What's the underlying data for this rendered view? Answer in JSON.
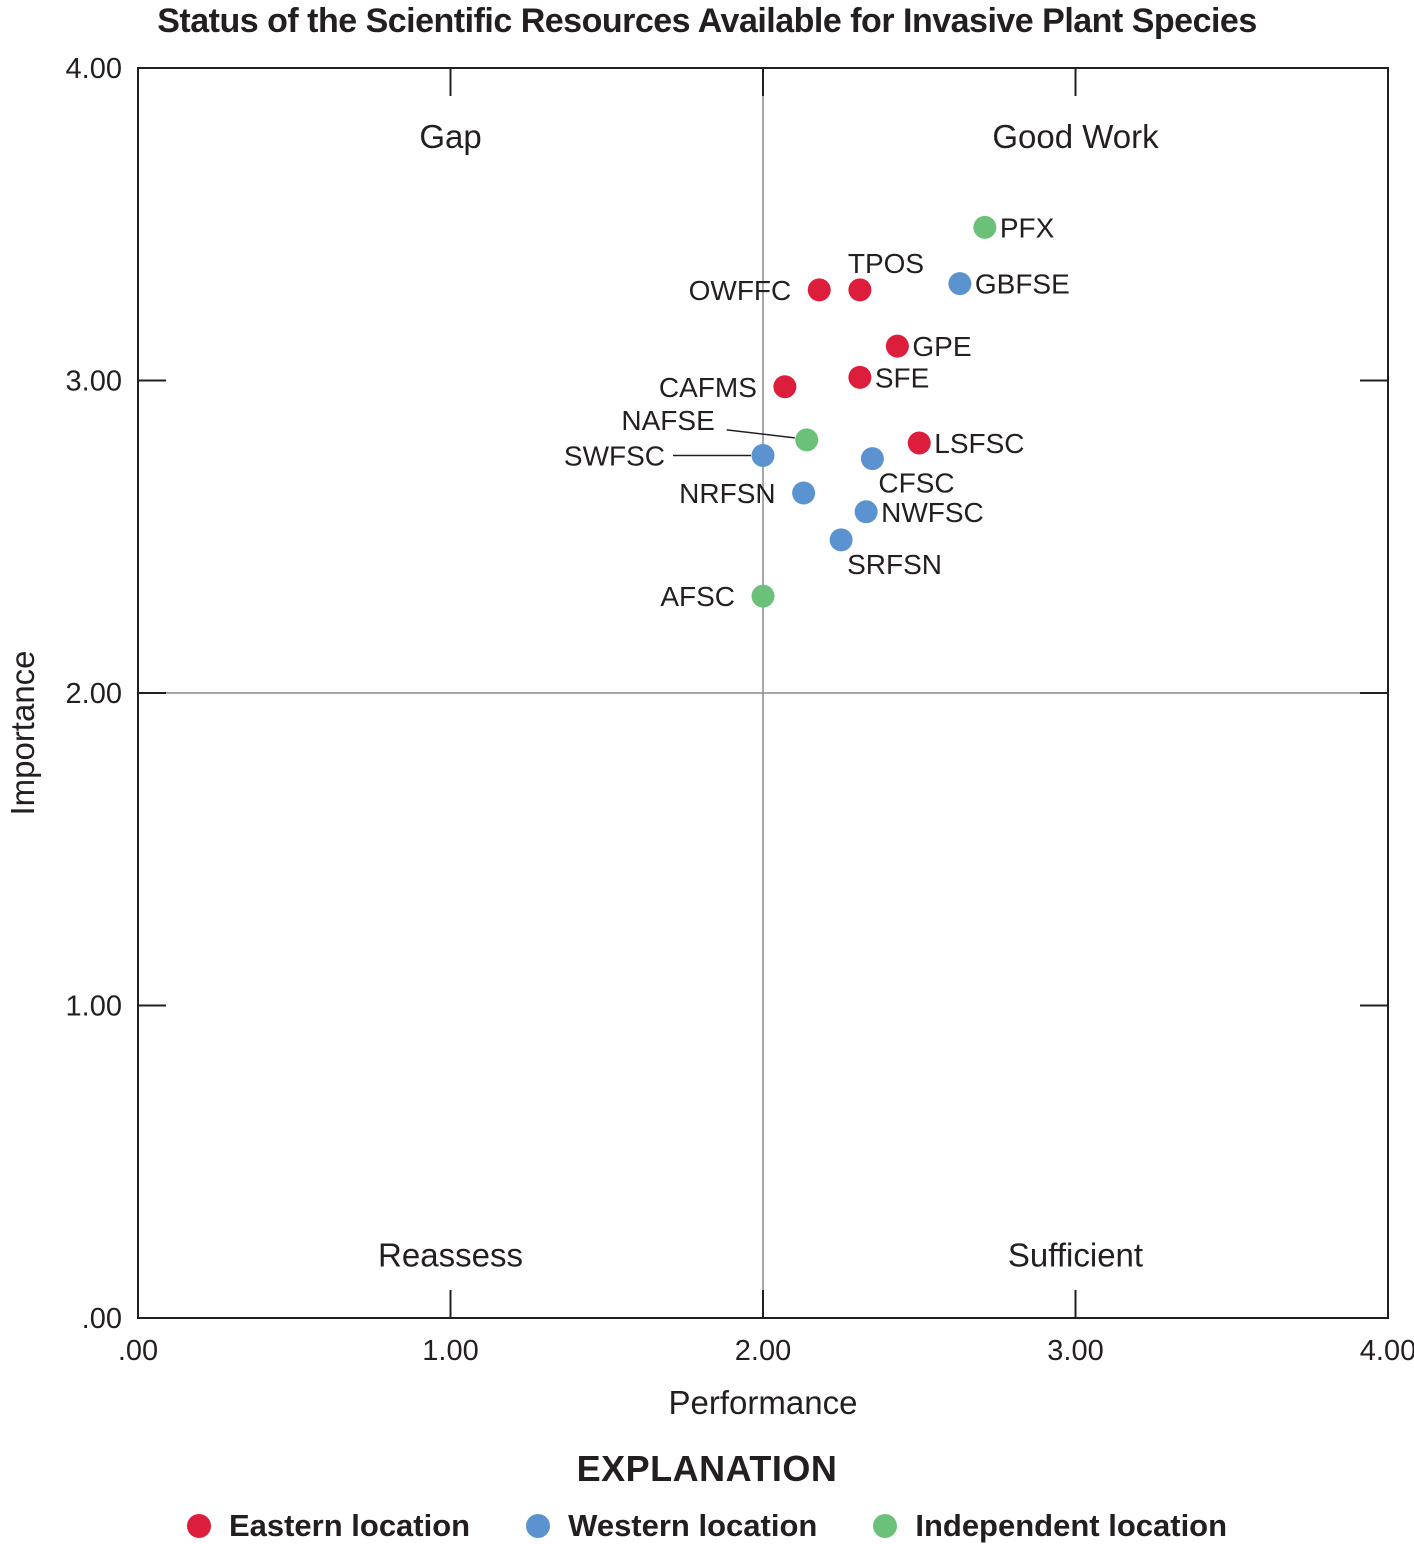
{
  "chart_data": {
    "type": "scatter",
    "title": "Status of the Scientific Resources Available for Invasive Plant Species",
    "xlabel": "Performance",
    "ylabel": "Importance",
    "xlim": [
      0,
      4
    ],
    "ylim": [
      0,
      4
    ],
    "xticks": [
      0,
      1,
      2,
      3,
      4
    ],
    "yticks": [
      0,
      1,
      2,
      3,
      4
    ],
    "xtick_labels": [
      ".00",
      "1.00",
      "2.00",
      "3.00",
      "4.00"
    ],
    "ytick_labels": [
      ".00",
      "1.00",
      "2.00",
      "3.00",
      "4.00"
    ],
    "divider": {
      "x": 2.0,
      "y": 2.0
    },
    "quadrants": [
      {
        "label": "Gap",
        "x": 1.0,
        "y": 3.78
      },
      {
        "label": "Good Work",
        "x": 3.0,
        "y": 3.78
      },
      {
        "label": "Reassess",
        "x": 1.0,
        "y": 0.2
      },
      {
        "label": "Sufficient",
        "x": 3.0,
        "y": 0.2
      }
    ],
    "categories": [
      {
        "key": "eastern",
        "name": "Eastern location",
        "color": "#dc1e3c"
      },
      {
        "key": "western",
        "name": "Western location",
        "color": "#5b93d1"
      },
      {
        "key": "independent",
        "name": "Independent location",
        "color": "#6cc17a"
      }
    ],
    "points": [
      {
        "label": "PFX",
        "x": 2.71,
        "y": 3.49,
        "group": "independent",
        "anchor": "right"
      },
      {
        "label": "TPOS",
        "x": 2.31,
        "y": 3.29,
        "group": "eastern",
        "anchor": "above-right"
      },
      {
        "label": "OWFFC",
        "x": 2.18,
        "y": 3.29,
        "group": "eastern",
        "anchor": "left"
      },
      {
        "label": "GBFSE",
        "x": 2.63,
        "y": 3.31,
        "group": "western",
        "anchor": "right"
      },
      {
        "label": "GPE",
        "x": 2.43,
        "y": 3.11,
        "group": "eastern",
        "anchor": "right"
      },
      {
        "label": "SFE",
        "x": 2.31,
        "y": 3.01,
        "group": "eastern",
        "anchor": "right"
      },
      {
        "label": "CAFMS",
        "x": 2.07,
        "y": 2.98,
        "group": "eastern",
        "anchor": "left"
      },
      {
        "label": "NAFSE",
        "x": 2.14,
        "y": 2.81,
        "group": "independent",
        "anchor": "leader-left-up"
      },
      {
        "label": "LSFSC",
        "x": 2.5,
        "y": 2.8,
        "group": "eastern",
        "anchor": "right"
      },
      {
        "label": "SWFSC",
        "x": 2.0,
        "y": 2.76,
        "group": "western",
        "anchor": "leader-left"
      },
      {
        "label": "CFSC",
        "x": 2.35,
        "y": 2.75,
        "group": "western",
        "anchor": "below-right"
      },
      {
        "label": "NRFSN",
        "x": 2.13,
        "y": 2.64,
        "group": "western",
        "anchor": "left"
      },
      {
        "label": "NWFSC",
        "x": 2.33,
        "y": 2.58,
        "group": "western",
        "anchor": "right"
      },
      {
        "label": "SRFSN",
        "x": 2.25,
        "y": 2.49,
        "group": "western",
        "anchor": "below-right"
      },
      {
        "label": "AFSC",
        "x": 2.0,
        "y": 2.31,
        "group": "independent",
        "anchor": "left"
      }
    ]
  },
  "legend": {
    "title": "EXPLANATION",
    "items": [
      {
        "label": "Eastern location",
        "color": "#dc1e3c"
      },
      {
        "label": "Western location",
        "color": "#5b93d1"
      },
      {
        "label": "Independent location",
        "color": "#6cc17a"
      }
    ]
  }
}
